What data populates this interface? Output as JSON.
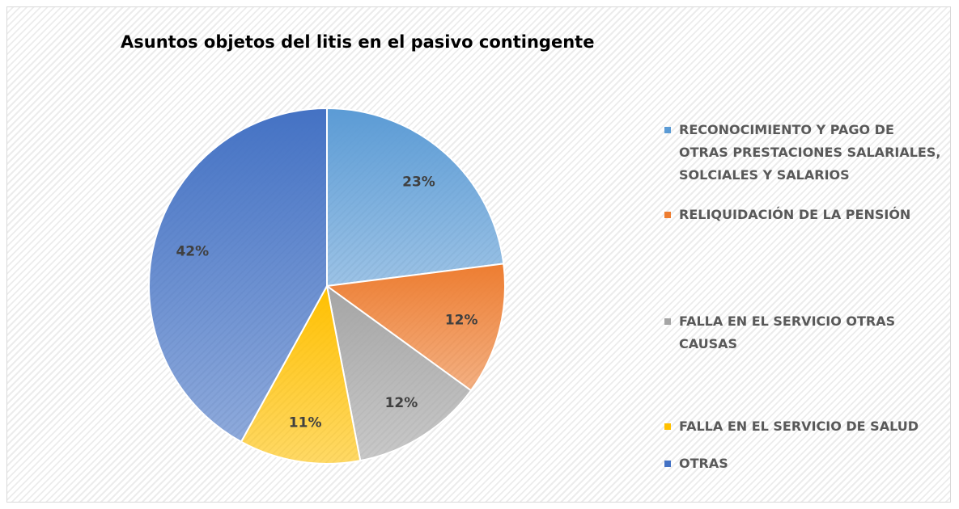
{
  "chart_data": {
    "type": "pie",
    "title": "Asuntos objetos del litis en el pasivo contingente",
    "categories": [
      "RECONOCIMIENTO Y PAGO DE OTRAS PRESTACIONES SALARIALES, SOLCIALES Y SALARIOS",
      "RELIQUIDACIÓN DE LA PENSIÓN",
      "FALLA EN EL SERVICIO OTRAS CAUSAS",
      "FALLA EN EL SERVICIO DE SALUD",
      "OTRAS"
    ],
    "values": [
      23,
      12,
      12,
      11,
      42
    ],
    "value_labels": [
      "23%",
      "12%",
      "12%",
      "11%",
      "42%"
    ],
    "colors": [
      "#5b9bd5",
      "#ed7d31",
      "#a5a5a5",
      "#ffc000",
      "#4472c4"
    ],
    "legend": "right"
  }
}
